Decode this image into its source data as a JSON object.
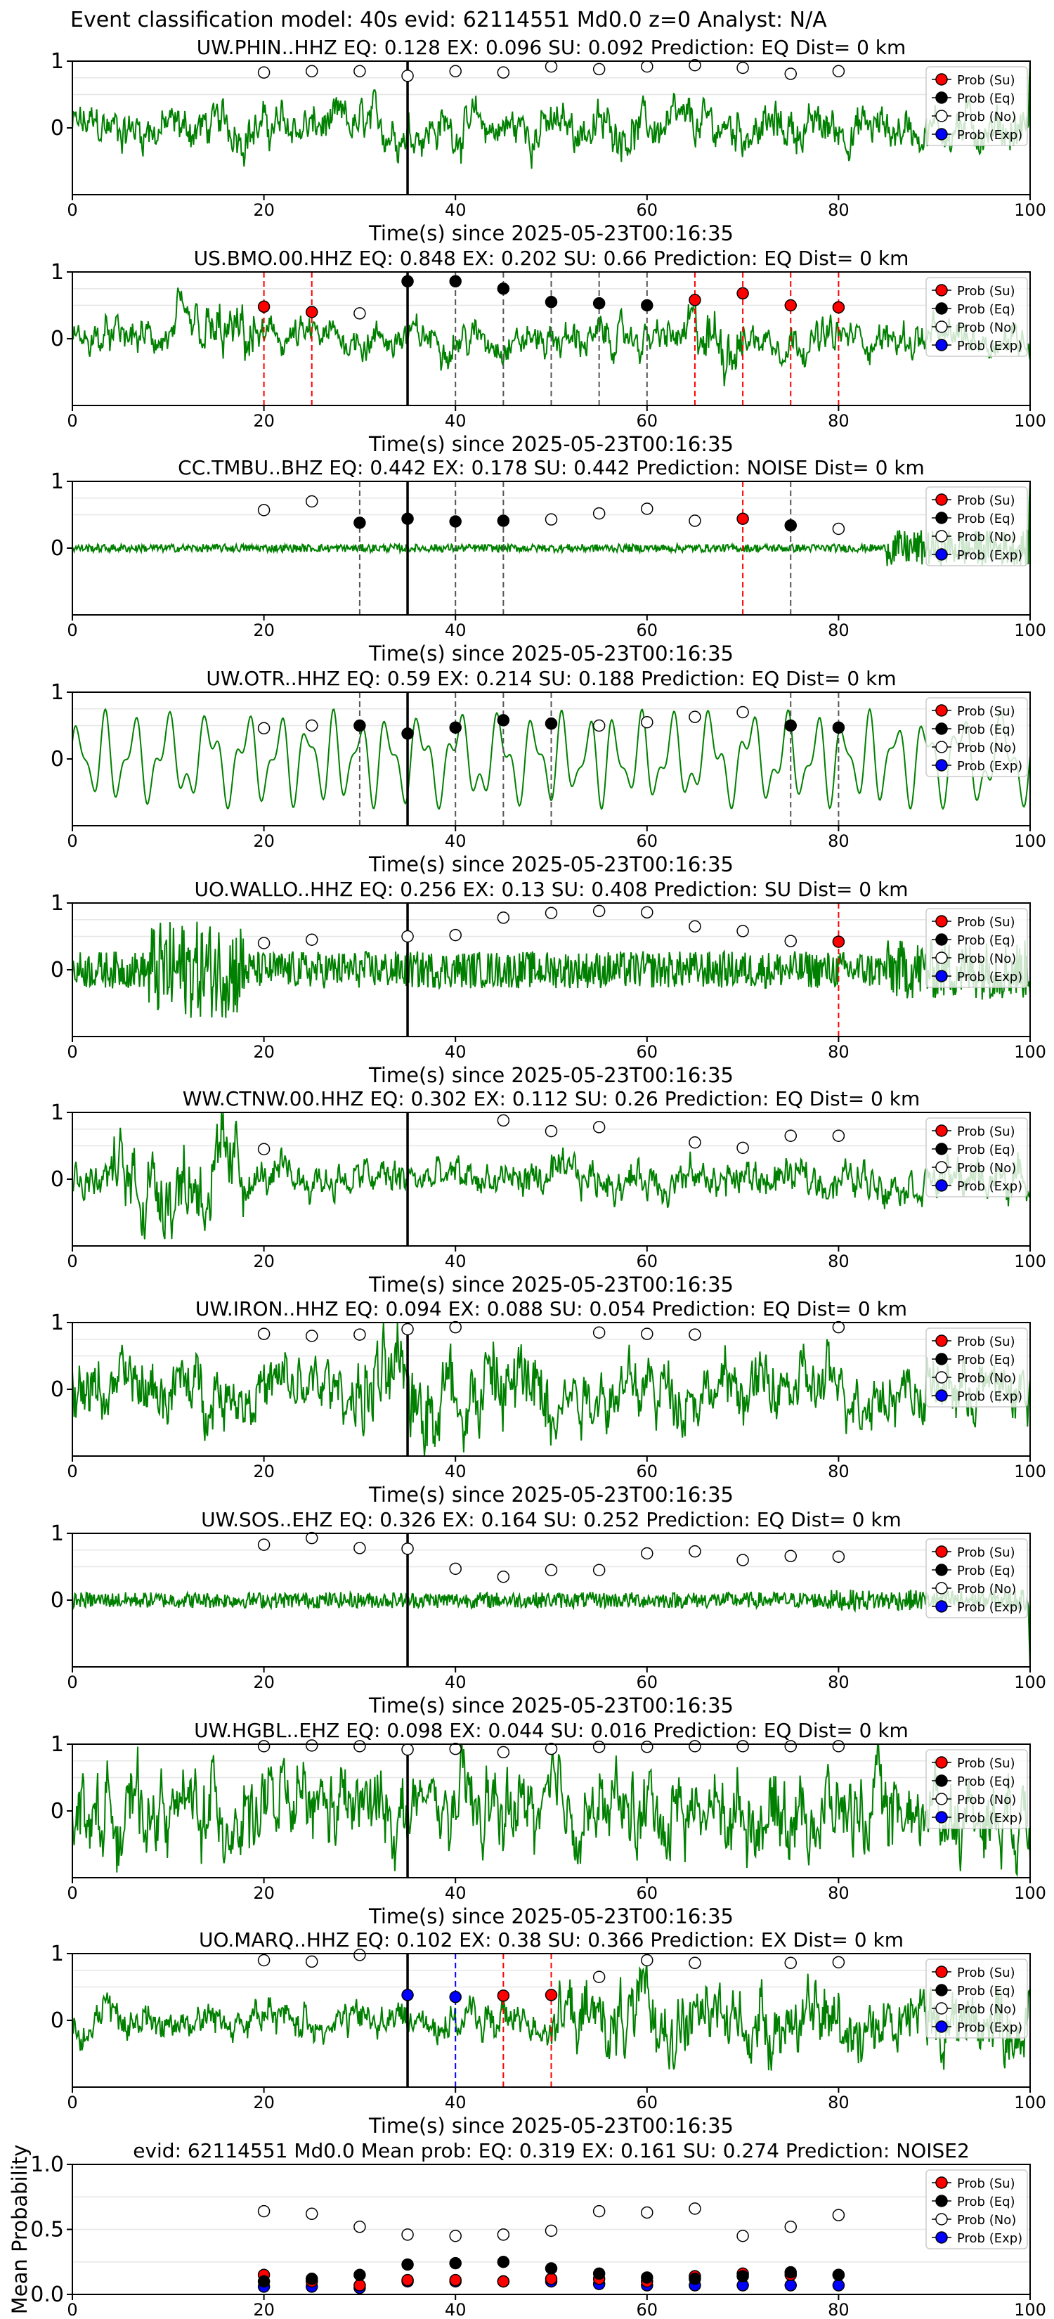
{
  "figure": {
    "suptitle": "Event classification model: 40s evid: 62114551 Md0.0 z=0 Analyst: N/A",
    "xlabel": "Time(s) since 2025-05-23T00:16:35",
    "legend": [
      "Prob (Su)",
      "Prob (Eq)",
      "Prob (No)",
      "Prob (Exp)"
    ]
  },
  "colors": {
    "waveform": "#008000",
    "su": "#ff0000",
    "eq": "#000000",
    "no": "#ffffff",
    "exp": "#0000ff",
    "pick_su": "#ff0000",
    "pick_eq": "#555555",
    "onset": "#000000"
  },
  "chart_data": [
    {
      "type": "line",
      "title": "UW.PHIN..HHZ   EQ: 0.128  EX: 0.096  SU: 0.092   Prediction: EQ    Dist= 0 km",
      "xlim": [
        0,
        100
      ],
      "ylim": [
        -1,
        1
      ],
      "yticks": [
        1,
        0
      ],
      "xticks": [
        0,
        20,
        40,
        60,
        80,
        100
      ],
      "onset": 35,
      "wave": {
        "amp": 0.35,
        "style": "mixed",
        "end": "up"
      },
      "no_markers": [
        [
          20,
          0.83
        ],
        [
          25,
          0.85
        ],
        [
          30,
          0.85
        ],
        [
          35,
          0.78
        ],
        [
          40,
          0.85
        ],
        [
          45,
          0.83
        ],
        [
          50,
          0.92
        ],
        [
          55,
          0.88
        ],
        [
          60,
          0.92
        ],
        [
          65,
          0.94
        ],
        [
          70,
          0.9
        ],
        [
          75,
          0.81
        ],
        [
          80,
          0.85
        ]
      ],
      "eq_markers": [],
      "su_markers": [],
      "exp_markers": [],
      "eq_picks": [],
      "su_picks": []
    },
    {
      "type": "line",
      "title": "US.BMO.00.HHZ   EQ: 0.848  EX: 0.202  SU: 0.66   Prediction: EQ    Dist= 0 km",
      "xlim": [
        0,
        100
      ],
      "ylim": [
        -1,
        1
      ],
      "yticks": [
        1,
        0
      ],
      "xticks": [
        0,
        20,
        40,
        60,
        80,
        100
      ],
      "onset": 35,
      "wave": {
        "amp": 0.28,
        "style": "mixed",
        "burst": [
          [
            10,
            20,
            1.6
          ],
          [
            64,
            70,
            1.8
          ]
        ]
      },
      "no_markers": [
        [
          30,
          0.38
        ]
      ],
      "eq_markers": [
        [
          35,
          0.86
        ],
        [
          40,
          0.86
        ],
        [
          45,
          0.75
        ],
        [
          50,
          0.55
        ],
        [
          55,
          0.53
        ],
        [
          60,
          0.5
        ]
      ],
      "su_markers": [
        [
          20,
          0.48
        ],
        [
          25,
          0.4
        ],
        [
          65,
          0.58
        ],
        [
          70,
          0.68
        ],
        [
          75,
          0.5
        ],
        [
          80,
          0.47
        ]
      ],
      "exp_markers": [],
      "eq_picks": [
        40,
        45,
        50,
        55,
        60
      ],
      "su_picks": [
        20,
        25,
        65,
        70,
        75,
        80
      ]
    },
    {
      "type": "line",
      "title": "CC.TMBU..BHZ   EQ: 0.442  EX: 0.178  SU: 0.442   Prediction: NOISE    Dist= 0 km",
      "xlim": [
        0,
        100
      ],
      "ylim": [
        -1,
        1
      ],
      "yticks": [
        1,
        0
      ],
      "xticks": [
        0,
        20,
        40,
        60,
        80,
        100
      ],
      "onset": 35,
      "wave": {
        "amp": 0.06,
        "style": "noise",
        "burst": [
          [
            85,
            100,
            4.5
          ]
        ],
        "end": "up"
      },
      "no_markers": [
        [
          20,
          0.57
        ],
        [
          25,
          0.7
        ],
        [
          50,
          0.43
        ],
        [
          55,
          0.52
        ],
        [
          60,
          0.59
        ],
        [
          65,
          0.41
        ],
        [
          80,
          0.29
        ]
      ],
      "eq_markers": [
        [
          30,
          0.38
        ],
        [
          35,
          0.44
        ],
        [
          40,
          0.4
        ],
        [
          45,
          0.41
        ],
        [
          75,
          0.34
        ]
      ],
      "su_markers": [
        [
          70,
          0.44
        ]
      ],
      "exp_markers": [],
      "eq_picks": [
        30,
        40,
        45,
        75
      ],
      "su_picks": [
        70
      ]
    },
    {
      "type": "line",
      "title": "UW.OTR..HHZ   EQ: 0.59  EX: 0.214  SU: 0.188   Prediction: EQ    Dist= 0 km",
      "xlim": [
        0,
        100
      ],
      "ylim": [
        -1,
        1
      ],
      "yticks": [
        1,
        0
      ],
      "xticks": [
        0,
        20,
        40,
        60,
        80,
        100
      ],
      "onset": 35,
      "wave": {
        "amp": 0.75,
        "style": "smooth"
      },
      "no_markers": [
        [
          20,
          0.46
        ],
        [
          25,
          0.5
        ],
        [
          55,
          0.5
        ],
        [
          60,
          0.55
        ],
        [
          65,
          0.63
        ],
        [
          70,
          0.7
        ]
      ],
      "eq_markers": [
        [
          30,
          0.5
        ],
        [
          35,
          0.38
        ],
        [
          40,
          0.47
        ],
        [
          45,
          0.58
        ],
        [
          50,
          0.53
        ],
        [
          75,
          0.5
        ],
        [
          80,
          0.47
        ]
      ],
      "su_markers": [],
      "exp_markers": [],
      "eq_picks": [
        30,
        40,
        45,
        50,
        75,
        80
      ],
      "su_picks": []
    },
    {
      "type": "line",
      "title": "UO.WALLO..HHZ   EQ: 0.256  EX: 0.13  SU: 0.408   Prediction: SU    Dist= 0 km",
      "xlim": [
        0,
        100
      ],
      "ylim": [
        -1,
        1
      ],
      "yticks": [
        1,
        0
      ],
      "xticks": [
        0,
        20,
        40,
        60,
        80,
        100
      ],
      "onset": 35,
      "wave": {
        "amp": 0.28,
        "style": "noise",
        "burst": [
          [
            8,
            18,
            2.6
          ],
          [
            85,
            100,
            1.6
          ]
        ]
      },
      "no_markers": [
        [
          20,
          0.4
        ],
        [
          25,
          0.45
        ],
        [
          35,
          0.5
        ],
        [
          40,
          0.52
        ],
        [
          45,
          0.78
        ],
        [
          50,
          0.85
        ],
        [
          55,
          0.88
        ],
        [
          60,
          0.86
        ],
        [
          65,
          0.65
        ],
        [
          70,
          0.58
        ],
        [
          75,
          0.43
        ]
      ],
      "eq_markers": [],
      "su_markers": [
        [
          80,
          0.42
        ]
      ],
      "exp_markers": [],
      "eq_picks": [],
      "su_picks": [
        80
      ]
    },
    {
      "type": "line",
      "title": "WW.CTNW.00.HHZ   EQ: 0.302  EX: 0.112  SU: 0.26   Prediction: EQ    Dist= 0 km",
      "xlim": [
        0,
        100
      ],
      "ylim": [
        -1,
        1
      ],
      "yticks": [
        1,
        0
      ],
      "xticks": [
        0,
        20,
        40,
        60,
        80,
        100
      ],
      "onset": 35,
      "wave": {
        "amp": 0.3,
        "style": "mixed",
        "burst": [
          [
            4,
            18,
            2.4
          ]
        ]
      },
      "no_markers": [
        [
          20,
          0.45
        ],
        [
          45,
          0.88
        ],
        [
          50,
          0.72
        ],
        [
          55,
          0.78
        ],
        [
          65,
          0.55
        ],
        [
          70,
          0.47
        ],
        [
          75,
          0.65
        ],
        [
          80,
          0.65
        ]
      ],
      "eq_markers": [],
      "su_markers": [],
      "exp_markers": [],
      "eq_picks": [],
      "su_picks": []
    },
    {
      "type": "line",
      "title": "UW.IRON..HHZ   EQ: 0.094  EX: 0.088  SU: 0.054   Prediction: EQ    Dist= 0 km",
      "xlim": [
        0,
        100
      ],
      "ylim": [
        -1,
        1
      ],
      "yticks": [
        1,
        0
      ],
      "xticks": [
        0,
        20,
        40,
        60,
        80,
        100
      ],
      "onset": 35,
      "wave": {
        "amp": 0.5,
        "style": "mixed",
        "burst": [
          [
            30,
            50,
            1.6
          ]
        ]
      },
      "no_markers": [
        [
          20,
          0.83
        ],
        [
          25,
          0.8
        ],
        [
          30,
          0.82
        ],
        [
          35,
          0.9
        ],
        [
          40,
          0.93
        ],
        [
          55,
          0.85
        ],
        [
          60,
          0.83
        ],
        [
          65,
          0.82
        ],
        [
          80,
          0.93
        ]
      ],
      "eq_markers": [],
      "su_markers": [],
      "exp_markers": [],
      "eq_picks": [],
      "su_picks": []
    },
    {
      "type": "line",
      "title": "UW.SOS..EHZ   EQ: 0.326  EX: 0.164  SU: 0.252   Prediction: EQ    Dist= 0 km",
      "xlim": [
        0,
        100
      ],
      "ylim": [
        -1,
        1
      ],
      "yticks": [
        1,
        0
      ],
      "xticks": [
        0,
        20,
        40,
        60,
        80,
        100
      ],
      "onset": 35,
      "wave": {
        "amp": 0.12,
        "style": "noise",
        "burst": [
          [
            78,
            100,
            1.3
          ]
        ],
        "end": "down"
      },
      "no_markers": [
        [
          20,
          0.83
        ],
        [
          25,
          0.93
        ],
        [
          30,
          0.78
        ],
        [
          35,
          0.77
        ],
        [
          40,
          0.47
        ],
        [
          45,
          0.35
        ],
        [
          50,
          0.45
        ],
        [
          55,
          0.45
        ],
        [
          60,
          0.7
        ],
        [
          65,
          0.73
        ],
        [
          70,
          0.6
        ],
        [
          75,
          0.66
        ],
        [
          80,
          0.65
        ]
      ],
      "eq_markers": [],
      "su_markers": [],
      "exp_markers": [],
      "eq_picks": [],
      "su_picks": []
    },
    {
      "type": "line",
      "title": "UW.HGBL..EHZ   EQ: 0.098  EX: 0.044  SU: 0.016   Prediction: EQ    Dist= 0 km",
      "xlim": [
        0,
        100
      ],
      "ylim": [
        -1,
        1
      ],
      "yticks": [
        1,
        0
      ],
      "xticks": [
        0,
        20,
        40,
        60,
        80,
        100
      ],
      "onset": 35,
      "wave": {
        "amp": 0.65,
        "style": "mixed"
      },
      "no_markers": [
        [
          20,
          0.97
        ],
        [
          25,
          0.98
        ],
        [
          30,
          0.97
        ],
        [
          35,
          0.92
        ],
        [
          40,
          0.93
        ],
        [
          45,
          0.88
        ],
        [
          50,
          0.93
        ],
        [
          55,
          0.96
        ],
        [
          60,
          0.96
        ],
        [
          65,
          0.97
        ],
        [
          70,
          0.97
        ],
        [
          75,
          0.97
        ],
        [
          80,
          0.97
        ]
      ],
      "eq_markers": [],
      "su_markers": [],
      "exp_markers": [],
      "eq_picks": [],
      "su_picks": []
    },
    {
      "type": "line",
      "title": "UO.MARQ..HHZ   EQ: 0.102  EX: 0.38  SU: 0.366   Prediction: EX    Dist= 0 km",
      "xlim": [
        0,
        100
      ],
      "ylim": [
        -1,
        1
      ],
      "yticks": [
        1,
        0
      ],
      "xticks": [
        0,
        20,
        40,
        60,
        80,
        100
      ],
      "onset": 35,
      "wave": {
        "amp": 0.3,
        "style": "mixed",
        "burst": [
          [
            50,
            100,
            1.9
          ]
        ]
      },
      "no_markers": [
        [
          20,
          0.9
        ],
        [
          25,
          0.88
        ],
        [
          30,
          0.98
        ],
        [
          55,
          0.65
        ],
        [
          60,
          0.9
        ],
        [
          65,
          0.86
        ],
        [
          75,
          0.86
        ],
        [
          80,
          0.87
        ]
      ],
      "eq_markers": [],
      "su_markers": [
        [
          45,
          0.37
        ],
        [
          50,
          0.38
        ]
      ],
      "exp_markers": [
        [
          35,
          0.38
        ],
        [
          40,
          0.35
        ]
      ],
      "eq_picks": [],
      "su_picks": [
        45,
        50
      ],
      "exp_picks": [
        40
      ]
    },
    {
      "type": "scatter",
      "title": "evid: 62114551   Md0.0   Mean prob:   EQ: 0.319  EX: 0.161  SU: 0.274   Prediction: NOISE2",
      "ylabel": "Mean Probability",
      "xlim": [
        0,
        100
      ],
      "ylim": [
        0,
        1
      ],
      "yticks": [
        1.0,
        0.5,
        0.0
      ],
      "ytick_labels": [
        "1.0",
        "0.5",
        "0.0"
      ],
      "xticks": [
        0,
        20,
        40,
        60,
        80,
        100
      ],
      "no_markers": [
        [
          20,
          0.64
        ],
        [
          25,
          0.62
        ],
        [
          30,
          0.52
        ],
        [
          35,
          0.46
        ],
        [
          40,
          0.45
        ],
        [
          45,
          0.46
        ],
        [
          50,
          0.49
        ],
        [
          55,
          0.64
        ],
        [
          60,
          0.63
        ],
        [
          65,
          0.66
        ],
        [
          70,
          0.45
        ],
        [
          75,
          0.52
        ],
        [
          80,
          0.61
        ]
      ],
      "eq_markers": [
        [
          20,
          0.1
        ],
        [
          25,
          0.12
        ],
        [
          30,
          0.15
        ],
        [
          35,
          0.23
        ],
        [
          40,
          0.24
        ],
        [
          45,
          0.25
        ],
        [
          50,
          0.2
        ],
        [
          55,
          0.16
        ],
        [
          60,
          0.13
        ],
        [
          65,
          0.12
        ],
        [
          70,
          0.14
        ],
        [
          75,
          0.17
        ],
        [
          80,
          0.15
        ]
      ],
      "su_markers": [
        [
          20,
          0.15
        ],
        [
          25,
          0.1
        ],
        [
          30,
          0.07
        ],
        [
          35,
          0.11
        ],
        [
          40,
          0.11
        ],
        [
          45,
          0.1
        ],
        [
          50,
          0.12
        ],
        [
          55,
          0.12
        ],
        [
          60,
          0.1
        ],
        [
          65,
          0.14
        ],
        [
          70,
          0.16
        ],
        [
          75,
          0.15
        ],
        [
          80,
          0.15
        ]
      ],
      "exp_markers": [
        [
          20,
          0.06
        ],
        [
          25,
          0.06
        ],
        [
          30,
          0.05
        ],
        [
          35,
          0.1
        ],
        [
          40,
          0.1
        ],
        [
          45,
          0.1
        ],
        [
          50,
          0.1
        ],
        [
          55,
          0.08
        ],
        [
          60,
          0.07
        ],
        [
          65,
          0.07
        ],
        [
          70,
          0.07
        ],
        [
          75,
          0.07
        ],
        [
          80,
          0.07
        ]
      ]
    }
  ]
}
